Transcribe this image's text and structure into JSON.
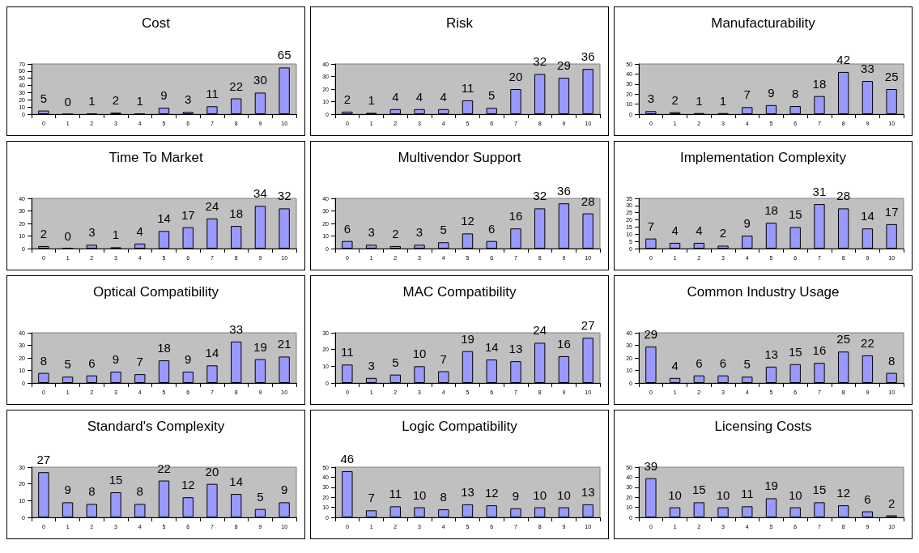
{
  "chart_data": [
    {
      "type": "bar",
      "title": "Cost",
      "categories": [
        "0",
        "1",
        "2",
        "3",
        "4",
        "5",
        "6",
        "7",
        "8",
        "9",
        "10"
      ],
      "values": [
        5,
        0,
        1,
        2,
        1,
        9,
        3,
        11,
        22,
        30,
        65
      ],
      "color": "#9999ff",
      "ylim": [
        0,
        70
      ],
      "yticks": [
        0,
        10,
        20,
        30,
        40,
        50,
        60,
        70
      ],
      "data_labels": true
    },
    {
      "type": "bar",
      "title": "Risk",
      "categories": [
        "0",
        "1",
        "2",
        "3",
        "4",
        "5",
        "6",
        "7",
        "8",
        "9",
        "10"
      ],
      "values": [
        2,
        1,
        4,
        4,
        4,
        11,
        5,
        20,
        32,
        29,
        36
      ],
      "color": "#9999ff",
      "ylim": [
        0,
        40
      ],
      "yticks": [
        0,
        10,
        20,
        30,
        40
      ],
      "data_labels": true
    },
    {
      "type": "bar",
      "title": "Manufacturability",
      "categories": [
        "0",
        "1",
        "2",
        "3",
        "4",
        "5",
        "6",
        "7",
        "8",
        "9",
        "10"
      ],
      "values": [
        3,
        2,
        1,
        1,
        7,
        9,
        8,
        18,
        42,
        33,
        25
      ],
      "color": "#9999ff",
      "ylim": [
        0,
        50
      ],
      "yticks": [
        0,
        10,
        20,
        30,
        40,
        50
      ],
      "data_labels": true
    },
    {
      "type": "bar",
      "title": "Time To Market",
      "categories": [
        "0",
        "1",
        "2",
        "3",
        "4",
        "5",
        "6",
        "7",
        "8",
        "9",
        "10"
      ],
      "values": [
        2,
        0,
        3,
        1,
        4,
        14,
        17,
        24,
        18,
        34,
        32
      ],
      "color": "#9999ff",
      "ylim": [
        0,
        40
      ],
      "yticks": [
        0,
        10,
        20,
        30,
        40
      ],
      "data_labels": true
    },
    {
      "type": "bar",
      "title": "Multivendor Support",
      "categories": [
        "0",
        "1",
        "2",
        "3",
        "4",
        "5",
        "6",
        "7",
        "8",
        "9",
        "10"
      ],
      "values": [
        6,
        3,
        2,
        3,
        5,
        12,
        6,
        16,
        32,
        36,
        28
      ],
      "color": "#9999ff",
      "ylim": [
        0,
        40
      ],
      "yticks": [
        0,
        10,
        20,
        30,
        40
      ],
      "data_labels": true
    },
    {
      "type": "bar",
      "title": "Implementation Complexity",
      "categories": [
        "0",
        "1",
        "2",
        "3",
        "4",
        "5",
        "6",
        "7",
        "8",
        "9",
        "10"
      ],
      "values": [
        7,
        4,
        4,
        2,
        9,
        18,
        15,
        31,
        28,
        14,
        17
      ],
      "color": "#9999ff",
      "ylim": [
        0,
        35
      ],
      "yticks": [
        0,
        5,
        10,
        15,
        20,
        25,
        30,
        35
      ],
      "data_labels": true
    },
    {
      "type": "bar",
      "title": "Optical Compatibility",
      "categories": [
        "0",
        "1",
        "2",
        "3",
        "4",
        "5",
        "6",
        "7",
        "8",
        "9",
        "10"
      ],
      "values": [
        8,
        5,
        6,
        9,
        7,
        18,
        9,
        14,
        33,
        19,
        21
      ],
      "color": "#9999ff",
      "ylim": [
        0,
        40
      ],
      "yticks": [
        0,
        10,
        20,
        30,
        40
      ],
      "data_labels": true
    },
    {
      "type": "bar",
      "title": "MAC Compatibility",
      "categories": [
        "0",
        "1",
        "2",
        "3",
        "4",
        "5",
        "6",
        "7",
        "8",
        "9",
        "10"
      ],
      "values": [
        11,
        3,
        5,
        10,
        7,
        19,
        14,
        13,
        24,
        16,
        27
      ],
      "color": "#9999ff",
      "ylim": [
        0,
        30
      ],
      "yticks": [
        0,
        10,
        20,
        30
      ],
      "data_labels": true
    },
    {
      "type": "bar",
      "title": "Common Industry Usage",
      "categories": [
        "0",
        "1",
        "2",
        "3",
        "4",
        "5",
        "6",
        "7",
        "8",
        "9",
        "10"
      ],
      "values": [
        29,
        4,
        6,
        6,
        5,
        13,
        15,
        16,
        25,
        22,
        8
      ],
      "color": "#9999ff",
      "ylim": [
        0,
        40
      ],
      "yticks": [
        0,
        10,
        20,
        30,
        40
      ],
      "data_labels": true
    },
    {
      "type": "bar",
      "title": "Standard's Complexity",
      "categories": [
        "0",
        "1",
        "2",
        "3",
        "4",
        "5",
        "6",
        "7",
        "8",
        "9",
        "10"
      ],
      "values": [
        27,
        9,
        8,
        15,
        8,
        22,
        12,
        20,
        14,
        5,
        9
      ],
      "color": "#9999ff",
      "ylim": [
        0,
        30
      ],
      "yticks": [
        0,
        10,
        20,
        30
      ],
      "data_labels": true
    },
    {
      "type": "bar",
      "title": "Logic Compatibility",
      "categories": [
        "0",
        "1",
        "2",
        "3",
        "4",
        "5",
        "6",
        "7",
        "8",
        "9",
        "10"
      ],
      "values": [
        46,
        7,
        11,
        10,
        8,
        13,
        12,
        9,
        10,
        10,
        13
      ],
      "color": "#9999ff",
      "ylim": [
        0,
        50
      ],
      "yticks": [
        0,
        10,
        20,
        30,
        40,
        50
      ],
      "data_labels": true
    },
    {
      "type": "bar",
      "title": "Licensing Costs",
      "categories": [
        "0",
        "1",
        "2",
        "3",
        "4",
        "5",
        "6",
        "7",
        "8",
        "9",
        "10"
      ],
      "values": [
        39,
        10,
        15,
        10,
        11,
        19,
        10,
        15,
        12,
        6,
        2
      ],
      "color": "#9999ff",
      "ylim": [
        0,
        50
      ],
      "yticks": [
        0,
        10,
        20,
        30,
        40,
        50
      ],
      "data_labels": true
    }
  ]
}
